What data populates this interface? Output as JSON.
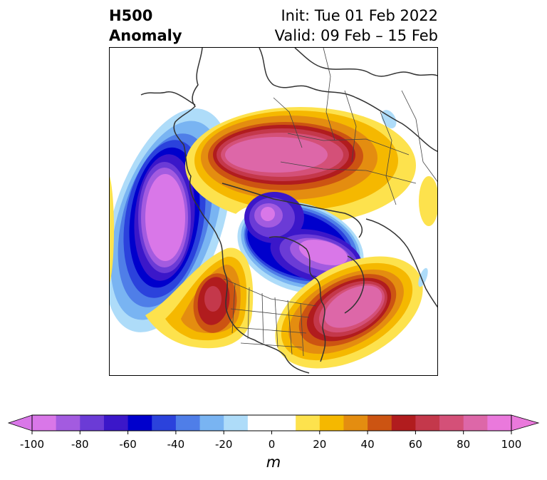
{
  "title": {
    "left_line1": "H500",
    "left_line2": "Anomaly",
    "right_line1": "Init: Tue 01 Feb 2022",
    "right_line2": "Valid: 09 Feb – 15 Feb"
  },
  "colorbar": {
    "unit": "m",
    "min": -100,
    "max": 100,
    "step": 10,
    "ticks": [
      "-100",
      "-80",
      "-60",
      "-40",
      "-20",
      "0",
      "20",
      "40",
      "60",
      "80",
      "100"
    ],
    "colors": [
      "#d977e8",
      "#a35be0",
      "#6b3bd6",
      "#3b17c9",
      "#0000cc",
      "#2b42dc",
      "#4f7ee8",
      "#79b4f2",
      "#aedcf9",
      "#ffffff",
      "#ffffff",
      "#fde24d",
      "#f5b800",
      "#e48d10",
      "#cc5412",
      "#b11c1e",
      "#c4384b",
      "#d45078",
      "#dd67a8",
      "#ea79dc"
    ],
    "extend_colors": {
      "low": "#d977e8",
      "high": "#ea79dc"
    }
  },
  "map": {
    "projection": "north-polar-stereographic",
    "features": [
      "coastlines",
      "country-borders",
      "state-borders"
    ],
    "anomaly_centers": [
      {
        "region": "Gulf of Alaska / North Pacific",
        "sign": "negative",
        "peak_m": -100
      },
      {
        "region": "Northern Eurasia / Siberia",
        "sign": "positive",
        "peak_m": 100
      },
      {
        "region": "Arctic Canada",
        "sign": "negative",
        "peak_m": -100
      },
      {
        "region": "Hudson Bay / Eastern Canada",
        "sign": "negative",
        "peak_m": -100
      },
      {
        "region": "Western United States",
        "sign": "positive",
        "peak_m": 70
      },
      {
        "region": "Western North Atlantic",
        "sign": "positive",
        "peak_m": 100
      }
    ]
  }
}
